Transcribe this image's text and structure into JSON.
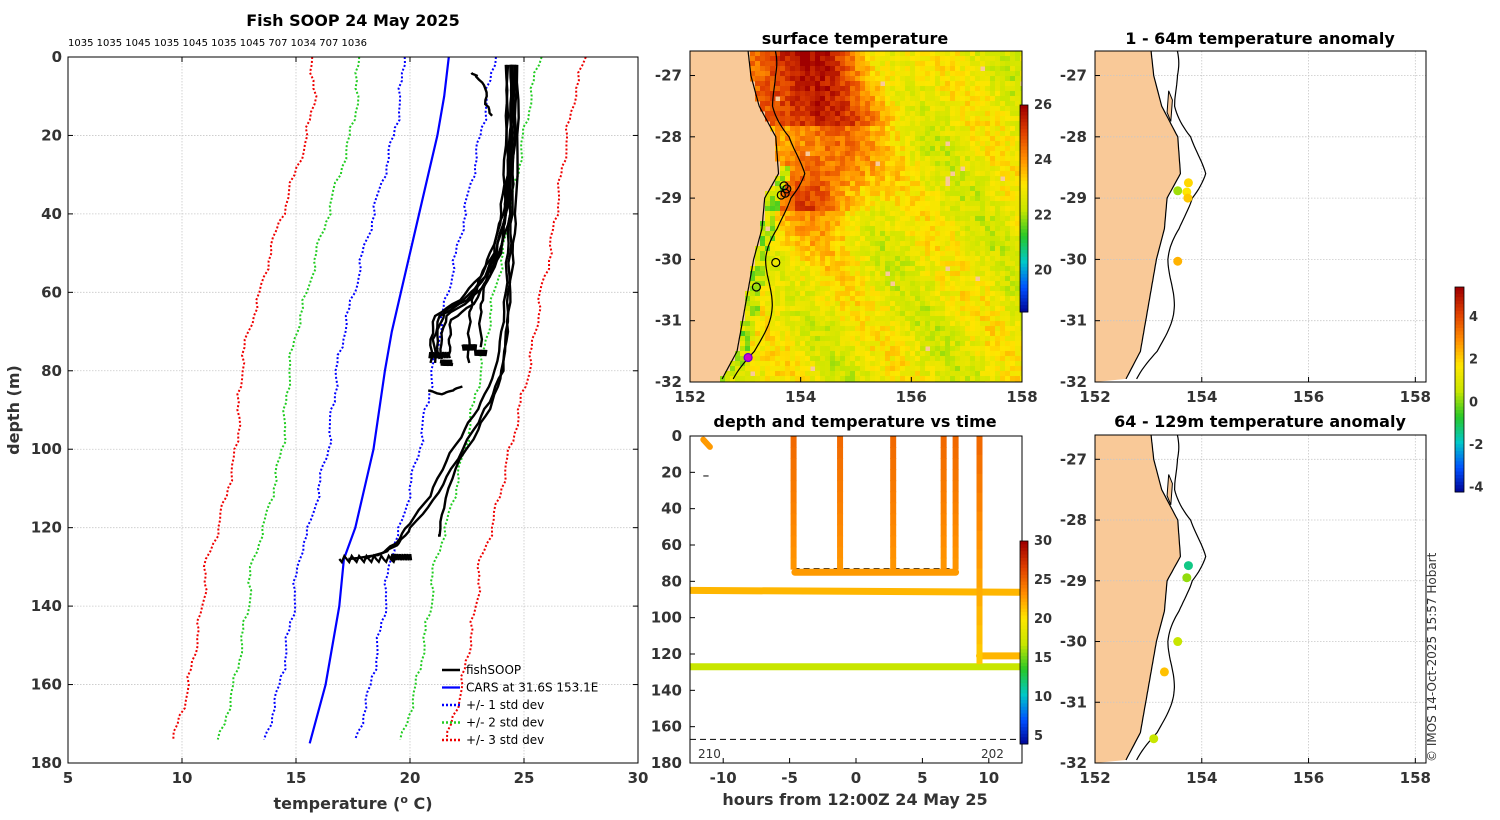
{
  "copyright": "© IMOS 14-Oct-2025 15:57 Hobart",
  "colors": {
    "sst_cmap": [
      "#00008f",
      "#0050ff",
      "#00c8c8",
      "#28c828",
      "#c8e600",
      "#ffe600",
      "#ff8c00",
      "#e04000",
      "#a00000"
    ],
    "land": "#f9c998",
    "black": "#000000",
    "blue": "#0000ff",
    "green": "#22cc22",
    "red": "#ee0000"
  },
  "chart_data": [
    {
      "id": "profile",
      "type": "line",
      "title": "Fish SOOP 24 May 2025",
      "top_labels": "1035 1035 1045 1035 1045 1035 1045 707 1034 707 1036",
      "xlabel": "temperature (",
      "xlabel_sup": "o",
      "xlabel_end": " C)",
      "ylabel": "depth (m)",
      "xlim": [
        5,
        30
      ],
      "ylim": [
        180,
        0
      ],
      "xticks": [
        "5",
        "10",
        "15",
        "20",
        "25",
        "30"
      ],
      "yticks": [
        "0",
        "20",
        "40",
        "60",
        "80",
        "100",
        "120",
        "140",
        "160",
        "180"
      ],
      "legend": [
        "fishSOOP",
        "CARS at 31.6S 153.1E",
        "+/- 1 std dev",
        "+/- 2 std dev",
        "+/- 3 std dev"
      ],
      "cars_depth": [
        0,
        10,
        20,
        30,
        40,
        50,
        60,
        70,
        80,
        100,
        120,
        128,
        140,
        160,
        175
      ],
      "cars_mean": [
        21.7,
        21.5,
        21.2,
        20.8,
        20.4,
        20.0,
        19.6,
        19.2,
        18.9,
        18.4,
        17.6,
        17.1,
        16.9,
        16.3,
        15.6
      ],
      "cars_std": [
        2.0,
        1.9,
        1.9,
        1.95,
        2.0,
        2.05,
        2.05,
        2.1,
        2.1,
        2.0,
        2.0,
        2.0,
        2.0,
        2.0,
        2.0
      ],
      "fish_profiles": [
        {
          "t": [
            24.4,
            24.4,
            24.3,
            24.2,
            23.8,
            23.3,
            22.5,
            21.3,
            21.0,
            21.1
          ],
          "d": [
            2,
            15,
            30,
            40,
            50,
            56,
            62,
            66,
            72,
            78
          ]
        },
        {
          "t": [
            24.5,
            24.5,
            24.4,
            24.2,
            23.9,
            23.4,
            22.6,
            21.6,
            21.4,
            21.4
          ],
          "d": [
            2,
            15,
            30,
            40,
            50,
            57,
            62,
            66,
            72,
            77
          ]
        },
        {
          "t": [
            24.6,
            24.6,
            24.5,
            24.4,
            24.0,
            23.5,
            22.8,
            21.8,
            21.7,
            21.7
          ],
          "d": [
            2,
            15,
            30,
            40,
            50,
            56,
            63,
            67,
            72,
            76
          ]
        },
        {
          "t": [
            24.3,
            24.3,
            24.3,
            24.2,
            23.9,
            23.3,
            22.5,
            21.5,
            21.2,
            21.3
          ],
          "d": [
            2,
            15,
            30,
            40,
            50,
            56,
            61,
            65,
            71,
            77
          ]
        },
        {
          "t": [
            24.2,
            24.2,
            24.1,
            24.0,
            23.7,
            23.1,
            22.2,
            21.1,
            20.9,
            20.9
          ],
          "d": [
            2,
            15,
            30,
            40,
            50,
            56,
            62,
            66,
            72,
            78
          ]
        },
        {
          "t": [
            24.5,
            24.5,
            24.3,
            24.1,
            23.5,
            23.0,
            22.7,
            22.6,
            22.6,
            22.6
          ],
          "d": [
            2,
            15,
            30,
            40,
            50,
            57,
            62,
            66,
            72,
            78
          ]
        },
        {
          "t": [
            24.4,
            24.4,
            24.3,
            24.2,
            23.8,
            23.4,
            23.2,
            23.1,
            23.1
          ],
          "d": [
            2,
            15,
            30,
            40,
            50,
            56,
            62,
            66,
            74
          ]
        },
        {
          "t": [
            24.6,
            24.6,
            24.5,
            24.4,
            24.3,
            24.2,
            24.0,
            23.6,
            23.0,
            22.0,
            21.5,
            21.3,
            21.3
          ],
          "d": [
            2,
            20,
            40,
            50,
            60,
            70,
            80,
            88,
            95,
            105,
            115,
            122,
            122
          ]
        },
        {
          "t": [
            24.7,
            24.7,
            24.6,
            24.5,
            24.4,
            24.3,
            24.1,
            23.5,
            22.8,
            21.8,
            21.0,
            20.0,
            19.5,
            19.0,
            18.0
          ],
          "d": [
            2,
            20,
            40,
            50,
            60,
            70,
            80,
            88,
            95,
            105,
            113,
            120,
            124,
            126,
            128
          ]
        },
        {
          "t": [
            24.5,
            24.5,
            24.4,
            24.3,
            24.2,
            24.0,
            23.7,
            23.1,
            22.4,
            21.6,
            20.9,
            20.0,
            19.4,
            18.6,
            17.3
          ],
          "d": [
            2,
            20,
            40,
            50,
            60,
            70,
            80,
            88,
            95,
            103,
            112,
            119,
            124,
            127,
            128
          ]
        },
        {
          "t": [
            22.7,
            22.9,
            23.3,
            23.3,
            23.6
          ],
          "d": [
            4,
            5,
            8,
            12,
            15
          ]
        },
        {
          "t": [
            20.8,
            21.4,
            21.9,
            22.3
          ],
          "d": [
            85,
            86,
            85,
            84
          ]
        }
      ]
    },
    {
      "id": "sst",
      "type": "heatmap",
      "title": "surface temperature",
      "xlim": [
        152,
        158
      ],
      "ylim": [
        -32,
        -26.6
      ],
      "xticks": [
        "152",
        "154",
        "156",
        "158"
      ],
      "yticks": [
        "-27",
        "-28",
        "-29",
        "-30",
        "-31",
        "-32"
      ],
      "colorbar": {
        "min": 18.5,
        "max": 26,
        "ticks": [
          "20",
          "22",
          "24",
          "26"
        ]
      },
      "stations": [
        [
          153.7,
          -28.8
        ],
        [
          153.75,
          -28.85
        ],
        [
          153.65,
          -28.95
        ],
        [
          153.72,
          -28.92
        ],
        [
          153.55,
          -30.05
        ],
        [
          153.2,
          -30.45
        ],
        [
          153.05,
          -31.6
        ]
      ]
    },
    {
      "id": "timeseries",
      "type": "scatter",
      "title": "depth and temperature vs time",
      "xlabel": "hours from 12:00Z 24 May 25",
      "xlim": [
        -12.5,
        12.5
      ],
      "ylim": [
        180,
        0
      ],
      "xticks": [
        "-10",
        "-5",
        "0",
        "5",
        "10"
      ],
      "yticks": [
        "0",
        "20",
        "40",
        "60",
        "80",
        "100",
        "120",
        "140",
        "160",
        "180"
      ],
      "colorbar": {
        "min": 4,
        "max": 30,
        "ticks": [
          "5",
          "10",
          "15",
          "20",
          "25",
          "30"
        ]
      },
      "annotations": [
        "210",
        "202"
      ],
      "dashed_depths": [
        73,
        86,
        167
      ],
      "tracks": [
        {
          "x": [
            -11.5,
            -11.0
          ],
          "d": [
            2,
            6
          ],
          "temp": 23
        },
        {
          "x": [
            -12.5,
            12.5
          ],
          "d": [
            85,
            86
          ],
          "temp": 22
        },
        {
          "x": [
            -12.5,
            12.5
          ],
          "d": [
            127,
            127
          ],
          "temp": 17
        },
        {
          "x": [
            9.3,
            12.5
          ],
          "d": [
            121,
            121
          ],
          "temp": 22
        },
        {
          "x": [
            -4.6,
            7.5
          ],
          "d": [
            75,
            75
          ],
          "temp": 23
        }
      ],
      "casts": [
        {
          "x": -4.7,
          "d": [
            0,
            73
          ],
          "temp_top": 25,
          "temp_bot": 23
        },
        {
          "x": -1.2,
          "d": [
            0,
            73
          ],
          "temp_top": 25,
          "temp_bot": 23
        },
        {
          "x": 2.8,
          "d": [
            0,
            73
          ],
          "temp_top": 25,
          "temp_bot": 23
        },
        {
          "x": 6.6,
          "d": [
            0,
            73
          ],
          "temp_top": 25,
          "temp_bot": 23
        },
        {
          "x": 7.5,
          "d": [
            0,
            73
          ],
          "temp_top": 25,
          "temp_bot": 23
        },
        {
          "x": 9.3,
          "d": [
            0,
            125
          ],
          "temp_top": 25,
          "temp_bot": 21
        }
      ]
    },
    {
      "id": "anom_shallow",
      "type": "scatter",
      "title": "1 - 64m temperature anomaly",
      "xlim": [
        152,
        158.2
      ],
      "ylim": [
        -32,
        -26.6
      ],
      "xticks": [
        "152",
        "154",
        "156",
        "158"
      ],
      "yticks": [
        "-27",
        "-28",
        "-29",
        "-30",
        "-31",
        "-32"
      ],
      "points": [
        [
          153.75,
          -28.75,
          2.0
        ],
        [
          153.72,
          -28.9,
          1.8
        ],
        [
          153.74,
          -29.0,
          2.2
        ],
        [
          153.55,
          -28.88,
          0.3
        ],
        [
          153.55,
          -30.03,
          2.5
        ]
      ]
    },
    {
      "id": "anom_deep",
      "type": "scatter",
      "title": "64 - 129m temperature anomaly",
      "xlim": [
        152,
        158.2
      ],
      "ylim": [
        -32,
        -26.6
      ],
      "xticks": [
        "152",
        "154",
        "156",
        "158"
      ],
      "yticks": [
        "-27",
        "-28",
        "-29",
        "-30",
        "-31",
        "-32"
      ],
      "points": [
        [
          153.75,
          -28.75,
          -1.3
        ],
        [
          153.72,
          -28.95,
          0.2
        ],
        [
          153.55,
          -30.0,
          0.6
        ],
        [
          153.3,
          -30.5,
          2.3
        ],
        [
          153.1,
          -31.6,
          0.6
        ]
      ],
      "colorbar": {
        "min": -4.2,
        "max": 5.4,
        "ticks": [
          "-4",
          "-2",
          "0",
          "2",
          "4"
        ]
      }
    }
  ]
}
